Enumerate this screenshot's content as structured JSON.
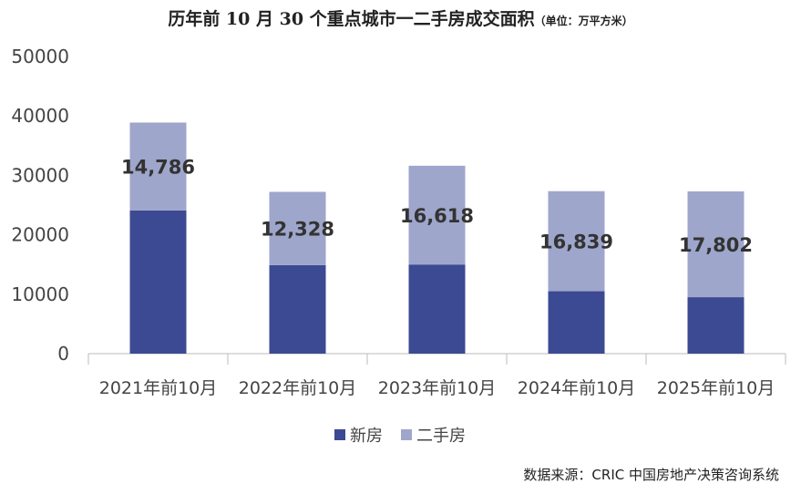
{
  "chart_data": {
    "type": "bar",
    "stacked": true,
    "title": "历年前 10 月 30 个重点城市一二手房成交面积",
    "unit_label": "（单位：万平方米）",
    "categories": [
      "2021年前10月",
      "2022年前10月",
      "2023年前10月",
      "2024年前10月",
      "2025年前10月"
    ],
    "series": [
      {
        "name": "新房",
        "color": "#3c4a93",
        "values": [
          24100,
          14900,
          15000,
          10500,
          9500
        ]
      },
      {
        "name": "二手房",
        "color": "#9fa6cc",
        "values": [
          14786,
          12328,
          16618,
          16839,
          17802
        ],
        "data_labels": [
          "14,786",
          "12,328",
          "16,618",
          "16,839",
          "17,802"
        ]
      }
    ],
    "ylim": [
      0,
      50000
    ],
    "yticks": [
      "0",
      "10000",
      "20000",
      "30000",
      "40000",
      "50000"
    ],
    "grid": false,
    "legend": "bottom",
    "source": "数据来源：CRIC 中国房地产决策咨询系统"
  }
}
